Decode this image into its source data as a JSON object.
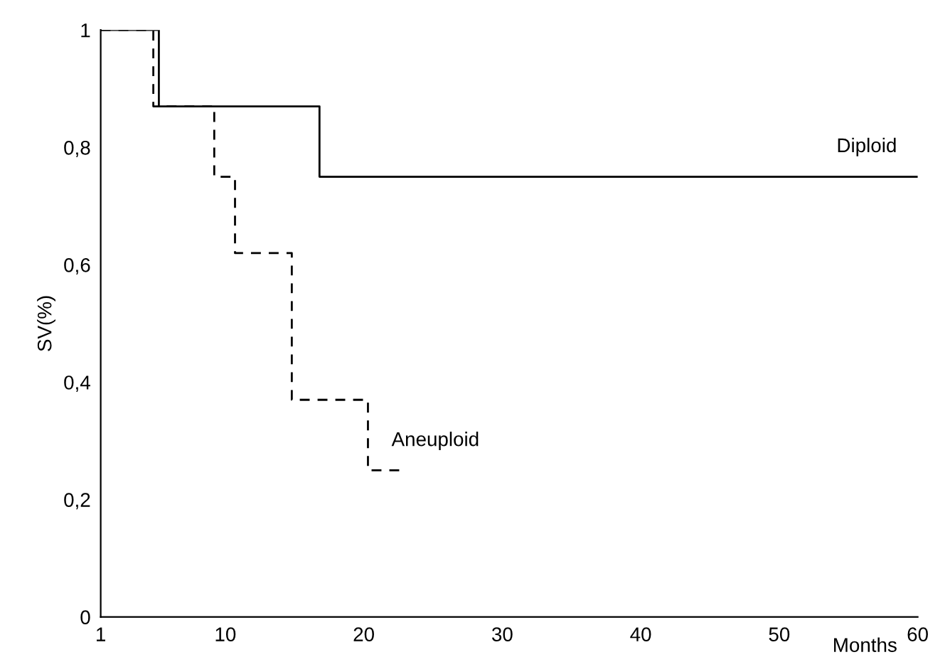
{
  "chart_data": {
    "type": "step",
    "ylabel": "SV(%)",
    "xlabel": "Months",
    "series": [
      {
        "name": "Diploid",
        "color": "#000000",
        "line_style": "solid",
        "x": [
          1,
          5.2,
          16.8,
          60
        ],
        "values": [
          1,
          0.87,
          0.75,
          0.75
        ]
      },
      {
        "name": "Aneuploid",
        "color": "#000000",
        "line_style": "dashed",
        "x": [
          1,
          4.8,
          9.2,
          10.7,
          14.8,
          20.3,
          22.8
        ],
        "values": [
          1,
          0.87,
          0.75,
          0.62,
          0.37,
          0.25,
          0.25
        ]
      }
    ],
    "xlim": [
      1,
      60
    ],
    "ylim": [
      0,
      1
    ],
    "xticks": [
      1,
      10,
      20,
      30,
      40,
      50,
      60
    ],
    "yticks": [
      0,
      {
        "value": 0.2,
        "label": "0,2"
      },
      {
        "value": 0.4,
        "label": "0,4"
      },
      {
        "value": 0.6,
        "label": "0,6"
      },
      {
        "value": 0.8,
        "label": "0,8"
      },
      1
    ],
    "grid": false,
    "legend": false
  }
}
